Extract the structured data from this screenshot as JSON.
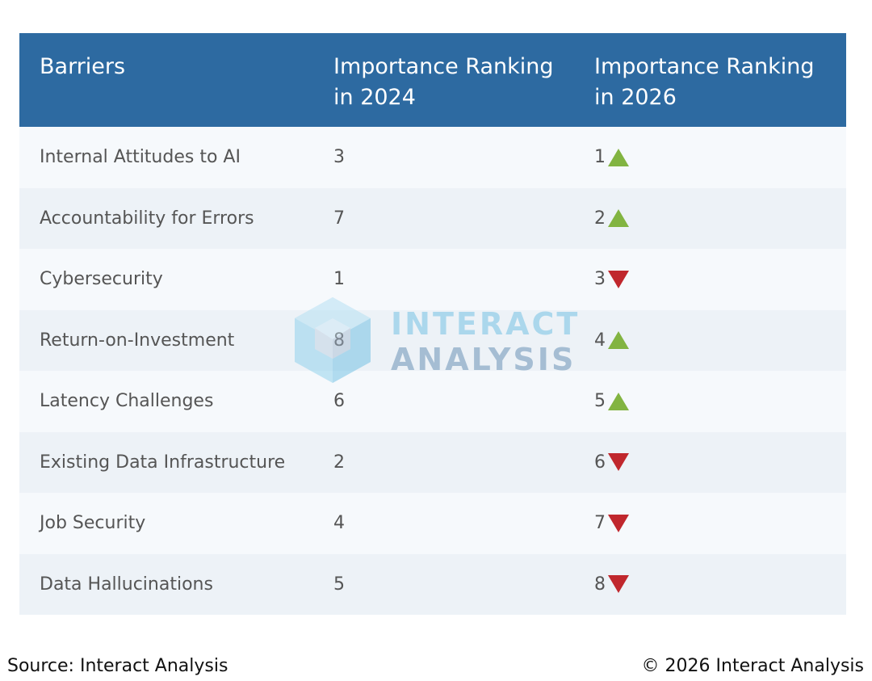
{
  "chart_data": {
    "type": "table",
    "columns": [
      "Barriers",
      "Importance Ranking in 2024",
      "Importance Ranking in 2026"
    ],
    "rows": [
      {
        "barrier": "Internal Attitudes to AI",
        "rank_2024": "3",
        "rank_2026": "1",
        "trend": "up"
      },
      {
        "barrier": "Accountability for Errors",
        "rank_2024": "7",
        "rank_2026": "2",
        "trend": "up"
      },
      {
        "barrier": "Cybersecurity",
        "rank_2024": "1",
        "rank_2026": "3",
        "trend": "down"
      },
      {
        "barrier": "Return-on-Investment",
        "rank_2024": "8",
        "rank_2026": "4",
        "trend": "up"
      },
      {
        "barrier": "Latency Challenges",
        "rank_2024": "6",
        "rank_2026": "5",
        "trend": "up"
      },
      {
        "barrier": "Existing Data Infrastructure",
        "rank_2024": "2",
        "rank_2026": "6",
        "trend": "down"
      },
      {
        "barrier": "Job Security",
        "rank_2024": "4",
        "rank_2026": "7",
        "trend": "down"
      },
      {
        "barrier": "Data Hallucinations",
        "rank_2024": "5",
        "rank_2026": "8",
        "trend": "down"
      }
    ],
    "colors": {
      "header": "#2d6aa1",
      "up": "#82b441",
      "down": "#c0272d"
    }
  },
  "watermark": {
    "line1": "INTERACT",
    "line2": "ANALYSIS"
  },
  "footer": {
    "source": "Source: Interact Analysis",
    "copyright": "© 2026 Interact Analysis"
  }
}
